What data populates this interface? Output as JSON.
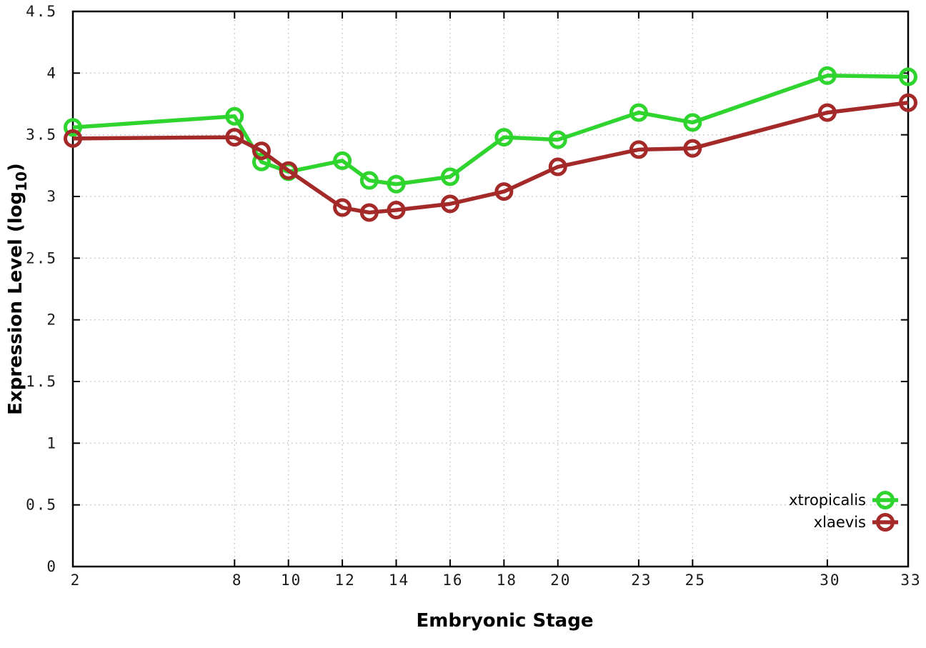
{
  "chart_data": {
    "type": "line",
    "title": "",
    "xlabel": "Embryonic Stage",
    "ylabel": "Expression Level (log10)",
    "ylabel_parts": {
      "prefix": "Expression Level (log",
      "sub": "10",
      "suffix": ")"
    },
    "x": [
      2,
      8,
      9,
      10,
      12,
      13,
      14,
      16,
      18,
      20,
      23,
      25,
      30,
      33
    ],
    "series": [
      {
        "name": "xtropicalis",
        "color": "#2fd42f",
        "values": [
          3.56,
          3.65,
          3.28,
          3.2,
          3.29,
          3.13,
          3.1,
          3.16,
          3.48,
          3.46,
          3.68,
          3.6,
          3.98,
          3.97
        ]
      },
      {
        "name": "xlaevis",
        "color": "#a42a2a",
        "values": [
          3.47,
          3.48,
          3.37,
          3.21,
          2.91,
          2.87,
          2.89,
          2.94,
          3.04,
          3.24,
          3.38,
          3.39,
          3.68,
          3.76
        ]
      }
    ],
    "xticks": [
      2,
      8,
      10,
      12,
      14,
      16,
      18,
      20,
      23,
      25,
      30,
      33
    ],
    "yticks": [
      0,
      0.5,
      1,
      1.5,
      2,
      2.5,
      3,
      3.5,
      4,
      4.5
    ],
    "xlim": [
      2,
      33
    ],
    "ylim": [
      0,
      4.5
    ],
    "grid": true,
    "grid_color": "#bdbdbd",
    "border_color": "#000000",
    "background_color": "#ffffff",
    "legend_position": "bottom-right",
    "marker": "open-circle"
  }
}
